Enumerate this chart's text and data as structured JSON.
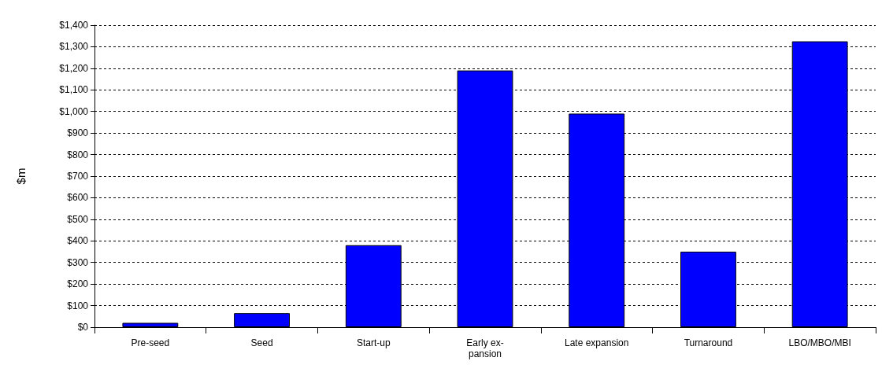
{
  "chart_data": {
    "type": "bar",
    "ylabel": "$m",
    "categories": [
      "Pre-seed",
      "Seed",
      "Start-up",
      "Early ex-\npansion",
      "Late expansion",
      "Turnaround",
      "LBO/MBO/MBI"
    ],
    "values": [
      20,
      65,
      380,
      1190,
      990,
      350,
      1325
    ],
    "color": "#0000ff",
    "ylim": [
      0,
      1400
    ],
    "yticks": [
      {
        "value": 0,
        "label": "$0"
      },
      {
        "value": 100,
        "label": "$100"
      },
      {
        "value": 200,
        "label": "$200"
      },
      {
        "value": 300,
        "label": "$300"
      },
      {
        "value": 400,
        "label": "$400"
      },
      {
        "value": 500,
        "label": "$500"
      },
      {
        "value": 600,
        "label": "$600"
      },
      {
        "value": 700,
        "label": "$700"
      },
      {
        "value": 800,
        "label": "$800"
      },
      {
        "value": 900,
        "label": "$900"
      },
      {
        "value": 1000,
        "label": "$1,000"
      },
      {
        "value": 1100,
        "label": "$1,100"
      },
      {
        "value": 1200,
        "label": "$1,200"
      },
      {
        "value": 1300,
        "label": "$1,300"
      },
      {
        "value": 1400,
        "label": "$1,400"
      }
    ],
    "grid": "y"
  }
}
